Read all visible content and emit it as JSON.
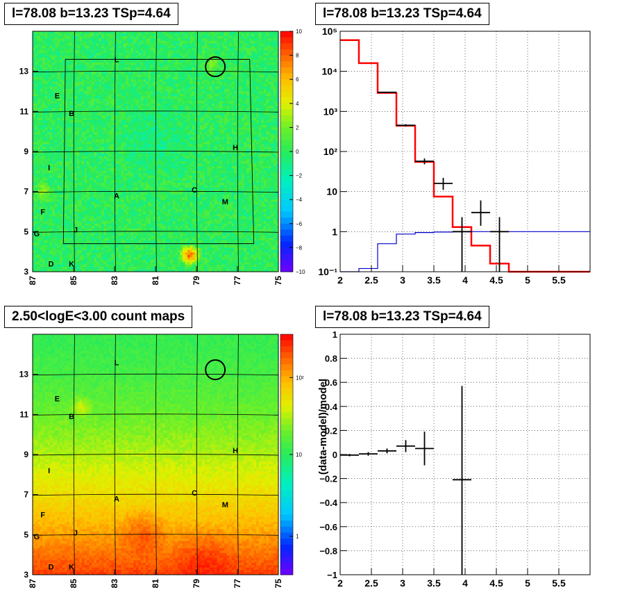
{
  "chart_data": [
    {
      "type": "heatmap",
      "title": "l=78.08 b=13.23 TSp=4.64",
      "x_ticks": [
        "87",
        "85",
        "83",
        "81",
        "79",
        "77",
        "75"
      ],
      "y_ticks": [
        "3",
        "5",
        "7",
        "9",
        "11",
        "13"
      ],
      "colorbar_ticks": [
        "10",
        "8",
        "6",
        "4",
        "2",
        "0",
        "−2",
        "−4",
        "−6",
        "−8",
        "−10"
      ],
      "labels": [
        "L",
        "E",
        "B",
        "H",
        "I",
        "A",
        "C",
        "M",
        "F",
        "J",
        "G",
        "D",
        "K"
      ]
    },
    {
      "type": "line",
      "title": "l=78.08 b=13.23 TSp=4.64",
      "x_ticks": [
        "2",
        "2.5",
        "3",
        "3.5",
        "4",
        "4.5",
        "5",
        "5.5"
      ],
      "y_ticks": [
        "10⁻¹",
        "1",
        "10",
        "10²",
        "10³",
        "10⁴",
        "10⁵"
      ],
      "xlim": [
        2,
        6
      ],
      "ylim": [
        0.1,
        100000
      ],
      "log_y": true,
      "series": [
        {
          "color": "#ff0000",
          "edges": [
            2.0,
            2.3,
            2.6,
            2.9,
            3.2,
            3.5,
            3.8,
            4.1,
            4.4,
            4.7,
            6.0
          ],
          "values": [
            60000,
            16000,
            2900,
            440,
            55,
            7.5,
            1.3,
            0.45,
            0.16,
            0.1
          ]
        },
        {
          "color": "#0000cc",
          "edges": [
            2.0,
            2.3,
            2.6,
            2.9,
            3.2,
            3.5,
            3.8,
            4.1,
            4.4,
            4.7,
            6.0
          ],
          "values": [
            0.09,
            0.12,
            0.5,
            0.87,
            0.95,
            0.98,
            0.99,
            1.0,
            1.0,
            1.0
          ]
        },
        {
          "color": "#000000",
          "points": [
            {
              "x": 2.75,
              "dx": 0.15,
              "y": 3000,
              "ylo": 2900,
              "yhi": 3100
            },
            {
              "x": 3.05,
              "dx": 0.15,
              "y": 450,
              "ylo": 420,
              "yhi": 480
            },
            {
              "x": 3.35,
              "dx": 0.15,
              "y": 57,
              "ylo": 48,
              "yhi": 67
            },
            {
              "x": 3.65,
              "dx": 0.15,
              "y": 16,
              "ylo": 11,
              "yhi": 22
            },
            {
              "x": 3.95,
              "dx": 0.15,
              "y": 1,
              "ylo": 0.1,
              "yhi": 2.3
            },
            {
              "x": 4.25,
              "dx": 0.15,
              "y": 3,
              "ylo": 1.4,
              "yhi": 6
            },
            {
              "x": 4.55,
              "dx": 0.15,
              "y": 1,
              "ylo": 0.1,
              "yhi": 2.3
            }
          ]
        }
      ]
    },
    {
      "type": "heatmap",
      "title": "2.50<logE<3.00 count maps",
      "x_ticks": [
        "87",
        "85",
        "83",
        "81",
        "79",
        "77",
        "75"
      ],
      "y_ticks": [
        "3",
        "5",
        "7",
        "9",
        "11",
        "13"
      ],
      "colorbar_ticks": [
        "10²",
        "10",
        "1"
      ],
      "labels": [
        "L",
        "E",
        "B",
        "H",
        "I",
        "A",
        "C",
        "M",
        "F",
        "J",
        "G",
        "D",
        "K"
      ]
    },
    {
      "type": "scatter",
      "title": "l=78.08 b=13.23 TSp=4.64",
      "ylabel": "(data-model)/model",
      "x_ticks": [
        "2",
        "2.5",
        "3",
        "3.5",
        "4",
        "4.5",
        "5",
        "5.5"
      ],
      "y_ticks": [
        "−1",
        "−0.8",
        "−0.6",
        "−0.4",
        "−0.2",
        "0",
        "0.2",
        "0.4",
        "0.6",
        "0.8",
        "1"
      ],
      "xlim": [
        2,
        6
      ],
      "ylim": [
        -1,
        1
      ],
      "points": [
        {
          "x": 2.15,
          "dx": 0.15,
          "y": -0.005,
          "ylo": -0.015,
          "yhi": 0.005
        },
        {
          "x": 2.45,
          "dx": 0.15,
          "y": 0.005,
          "ylo": -0.01,
          "yhi": 0.02
        },
        {
          "x": 2.75,
          "dx": 0.15,
          "y": 0.03,
          "ylo": 0.01,
          "yhi": 0.05
        },
        {
          "x": 3.05,
          "dx": 0.15,
          "y": 0.07,
          "ylo": 0.02,
          "yhi": 0.12
        },
        {
          "x": 3.35,
          "dx": 0.15,
          "y": 0.05,
          "ylo": -0.09,
          "yhi": 0.19
        },
        {
          "x": 3.95,
          "dx": 0.15,
          "y": -0.21,
          "ylo": -1.0,
          "yhi": 0.57
        }
      ]
    }
  ]
}
